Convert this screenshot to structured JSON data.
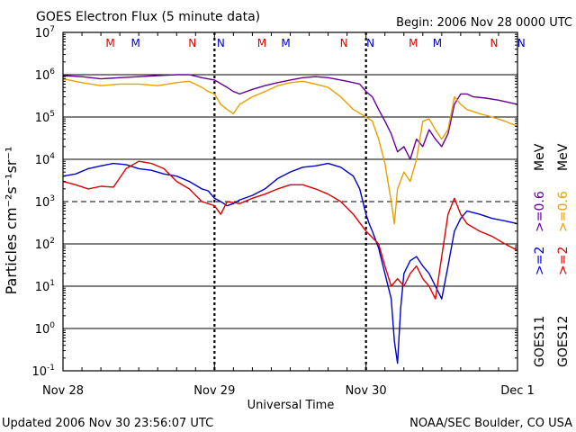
{
  "header": {
    "title": "GOES Electron Flux (5 minute data)",
    "begin": "Begin: 2006 Nov 28 0000 UTC"
  },
  "footer": {
    "updated": "Updated 2006 Nov 30 23:56:07 UTC",
    "credit": "NOAA/SEC Boulder, CO USA"
  },
  "chart_data": {
    "type": "line",
    "xlabel": "Universal Time",
    "ylabel": "Particles cm⁻²s⁻¹sr⁻¹",
    "ylim": [
      0.1,
      10000000
    ],
    "yscale": "log",
    "xlim": [
      0,
      72
    ],
    "x_units": "hours since 2006 Nov 28 0000 UTC",
    "x_ticks": [
      {
        "x": 0,
        "label": "Nov 28"
      },
      {
        "x": 24,
        "label": "Nov 29"
      },
      {
        "x": 48,
        "label": "Nov 30"
      },
      {
        "x": 72,
        "label": "Dec 1"
      }
    ],
    "y_ticks": [
      {
        "v": 0.1,
        "mantissa": "10",
        "exp": "-1"
      },
      {
        "v": 1,
        "mantissa": "10",
        "exp": "0"
      },
      {
        "v": 10,
        "mantissa": "10",
        "exp": "1"
      },
      {
        "v": 100,
        "mantissa": "10",
        "exp": "2"
      },
      {
        "v": 1000,
        "mantissa": "10",
        "exp": "3"
      },
      {
        "v": 10000,
        "mantissa": "10",
        "exp": "4"
      },
      {
        "v": 100000,
        "mantissa": "10",
        "exp": "5"
      },
      {
        "v": 1000000,
        "mantissa": "10",
        "exp": "6"
      },
      {
        "v": 10000000,
        "mantissa": "10",
        "exp": "7"
      }
    ],
    "threshold_dashed": 1000,
    "markers": [
      {
        "x": 7.5,
        "label": "M",
        "color": "#e00000"
      },
      {
        "x": 11.5,
        "label": "M",
        "color": "#0000cc"
      },
      {
        "x": 20.5,
        "label": "N",
        "color": "#e00000"
      },
      {
        "x": 25,
        "label": "N",
        "color": "#0000cc"
      },
      {
        "x": 31.5,
        "label": "M",
        "color": "#e00000"
      },
      {
        "x": 35.3,
        "label": "M",
        "color": "#0000cc"
      },
      {
        "x": 44.5,
        "label": "N",
        "color": "#e00000"
      },
      {
        "x": 48.7,
        "label": "N",
        "color": "#0000cc"
      },
      {
        "x": 55.5,
        "label": "M",
        "color": "#e00000"
      },
      {
        "x": 59.3,
        "label": "M",
        "color": "#0000cc"
      },
      {
        "x": 68.3,
        "label": "N",
        "color": "#e00000"
      },
      {
        "x": 72.6,
        "label": "N",
        "color": "#0000cc"
      }
    ],
    "right_legend": {
      "goes11": "GOES11",
      "goes12": "GOES12",
      "e2_goes11": ">=2",
      "e06_goes11": ">=0.6",
      "e2_goes12": ">=2",
      "e06_goes12": ">=0.6",
      "unit_a": "MeV",
      "unit_b": "MeV"
    },
    "series": [
      {
        "name": ">=0.6 MeV GOES11",
        "color": "#660099",
        "points": [
          [
            0,
            950000.0
          ],
          [
            3,
            900000.0
          ],
          [
            6,
            800000.0
          ],
          [
            9,
            850000.0
          ],
          [
            12,
            900000.0
          ],
          [
            15,
            950000.0
          ],
          [
            18,
            1000000.0
          ],
          [
            20,
            1000000.0
          ],
          [
            22,
            850000.0
          ],
          [
            24,
            750000.0
          ],
          [
            26,
            500000.0
          ],
          [
            27,
            400000.0
          ],
          [
            28,
            350000.0
          ],
          [
            30,
            450000.0
          ],
          [
            32,
            550000.0
          ],
          [
            34,
            650000.0
          ],
          [
            36,
            750000.0
          ],
          [
            38,
            850000.0
          ],
          [
            40,
            900000.0
          ],
          [
            42,
            850000.0
          ],
          [
            44,
            750000.0
          ],
          [
            46,
            650000.0
          ],
          [
            47,
            600000.0
          ],
          [
            48,
            400000.0
          ],
          [
            49,
            300000.0
          ],
          [
            50,
            150000.0
          ],
          [
            51,
            80000.0
          ],
          [
            52,
            40000.0
          ],
          [
            53,
            15000.0
          ],
          [
            54,
            20000.0
          ],
          [
            55,
            10000.0
          ],
          [
            56,
            30000.0
          ],
          [
            57,
            20000.0
          ],
          [
            58,
            50000.0
          ],
          [
            59,
            30000.0
          ],
          [
            60,
            20000.0
          ],
          [
            61,
            40000.0
          ],
          [
            62,
            200000.0
          ],
          [
            63,
            350000.0
          ],
          [
            64,
            350000.0
          ],
          [
            65,
            300000.0
          ],
          [
            67,
            280000.0
          ],
          [
            69,
            250000.0
          ],
          [
            72,
            200000.0
          ]
        ]
      },
      {
        "name": ">=0.6 MeV GOES12",
        "color": "#e8a000",
        "points": [
          [
            0,
            800000.0
          ],
          [
            3,
            650000.0
          ],
          [
            6,
            550000.0
          ],
          [
            9,
            600000.0
          ],
          [
            12,
            600000.0
          ],
          [
            15,
            550000.0
          ],
          [
            18,
            650000.0
          ],
          [
            20,
            700000.0
          ],
          [
            22,
            500000.0
          ],
          [
            23,
            400000.0
          ],
          [
            24,
            350000.0
          ],
          [
            25,
            200000.0
          ],
          [
            26,
            150000.0
          ],
          [
            27,
            120000.0
          ],
          [
            28,
            200000.0
          ],
          [
            30,
            300000.0
          ],
          [
            32,
            400000.0
          ],
          [
            34,
            550000.0
          ],
          [
            36,
            650000.0
          ],
          [
            38,
            700000.0
          ],
          [
            40,
            600000.0
          ],
          [
            42,
            500000.0
          ],
          [
            44,
            300000.0
          ],
          [
            46,
            150000.0
          ],
          [
            48,
            100000.0
          ],
          [
            49,
            80000.0
          ],
          [
            50,
            30000.0
          ],
          [
            51,
            8000.0
          ],
          [
            52,
            1000.0
          ],
          [
            52.5,
            300.0
          ],
          [
            53,
            2000.0
          ],
          [
            54,
            5000.0
          ],
          [
            55,
            3000.0
          ],
          [
            56,
            10000.0
          ],
          [
            57,
            80000.0
          ],
          [
            58,
            90000.0
          ],
          [
            59,
            50000.0
          ],
          [
            60,
            30000.0
          ],
          [
            61,
            50000.0
          ],
          [
            62,
            300000.0
          ],
          [
            63,
            200000.0
          ],
          [
            64,
            150000.0
          ],
          [
            66,
            120000.0
          ],
          [
            68,
            100000.0
          ],
          [
            70,
            80000.0
          ],
          [
            72,
            60000.0
          ]
        ]
      },
      {
        "name": ">=2 MeV GOES11",
        "color": "#0000cc",
        "points": [
          [
            0,
            4000.0
          ],
          [
            2,
            4500.0
          ],
          [
            4,
            6000.0
          ],
          [
            6,
            7000.0
          ],
          [
            8,
            8000.0
          ],
          [
            10,
            7500.0
          ],
          [
            12,
            6000.0
          ],
          [
            14,
            5500.0
          ],
          [
            16,
            4500.0
          ],
          [
            18,
            4000.0
          ],
          [
            20,
            3000.0
          ],
          [
            22,
            2000.0
          ],
          [
            23,
            1800.0
          ],
          [
            24,
            1200.0
          ],
          [
            25,
            1000.0
          ],
          [
            26,
            800.0
          ],
          [
            27,
            900.0
          ],
          [
            28,
            1100.0
          ],
          [
            30,
            1400.0
          ],
          [
            32,
            2000.0
          ],
          [
            34,
            3500.0
          ],
          [
            36,
            5000.0
          ],
          [
            38,
            6500.0
          ],
          [
            40,
            7000.0
          ],
          [
            42,
            8000.0
          ],
          [
            44,
            6500.0
          ],
          [
            46,
            4000.0
          ],
          [
            47,
            2000.0
          ],
          [
            48,
            500.0
          ],
          [
            48.5,
            300.0
          ],
          [
            49,
            200.0
          ],
          [
            50,
            80.0
          ],
          [
            51,
            20.0
          ],
          [
            52,
            5.0
          ],
          [
            52.5,
            0.5
          ],
          [
            53,
            0.15
          ],
          [
            53.5,
            3.0
          ],
          [
            54,
            20.0
          ],
          [
            55,
            40.0
          ],
          [
            56,
            50.0
          ],
          [
            57,
            30.0
          ],
          [
            58,
            20.0
          ],
          [
            59,
            10.0
          ],
          [
            60,
            5.0
          ],
          [
            61,
            30.0
          ],
          [
            62,
            200.0
          ],
          [
            63,
            400.0
          ],
          [
            64,
            600.0
          ],
          [
            66,
            500.0
          ],
          [
            68,
            400.0
          ],
          [
            70,
            350.0
          ],
          [
            72,
            300.0
          ]
        ]
      },
      {
        "name": ">=2 MeV GOES12",
        "color": "#e00000",
        "points": [
          [
            0,
            3000.0
          ],
          [
            2,
            2500.0
          ],
          [
            4,
            2000.0
          ],
          [
            6,
            2300.0
          ],
          [
            8,
            2200.0
          ],
          [
            10,
            6000.0
          ],
          [
            12,
            9000.0
          ],
          [
            14,
            8000.0
          ],
          [
            16,
            6000.0
          ],
          [
            18,
            3000.0
          ],
          [
            20,
            2000.0
          ],
          [
            22,
            1000.0
          ],
          [
            24,
            800.0
          ],
          [
            25,
            500.0
          ],
          [
            26,
            1000.0
          ],
          [
            28,
            900.0
          ],
          [
            30,
            1200.0
          ],
          [
            32,
            1500.0
          ],
          [
            34,
            2000.0
          ],
          [
            36,
            2500.0
          ],
          [
            38,
            2500.0
          ],
          [
            40,
            2000.0
          ],
          [
            42,
            1500.0
          ],
          [
            44,
            1000.0
          ],
          [
            46,
            500.0
          ],
          [
            48,
            200.0
          ],
          [
            50,
            100.0
          ],
          [
            51,
            30.0
          ],
          [
            52,
            10.0
          ],
          [
            53,
            15.0
          ],
          [
            54,
            10.0
          ],
          [
            55,
            20.0
          ],
          [
            56,
            30.0
          ],
          [
            57,
            15.0
          ],
          [
            58,
            10.0
          ],
          [
            59,
            5.0
          ],
          [
            60,
            50.0
          ],
          [
            61,
            500.0
          ],
          [
            62,
            1200.0
          ],
          [
            63,
            500.0
          ],
          [
            64,
            300.0
          ],
          [
            66,
            200.0
          ],
          [
            68,
            150.0
          ],
          [
            70,
            100.0
          ],
          [
            72,
            70.0
          ]
        ]
      }
    ]
  }
}
